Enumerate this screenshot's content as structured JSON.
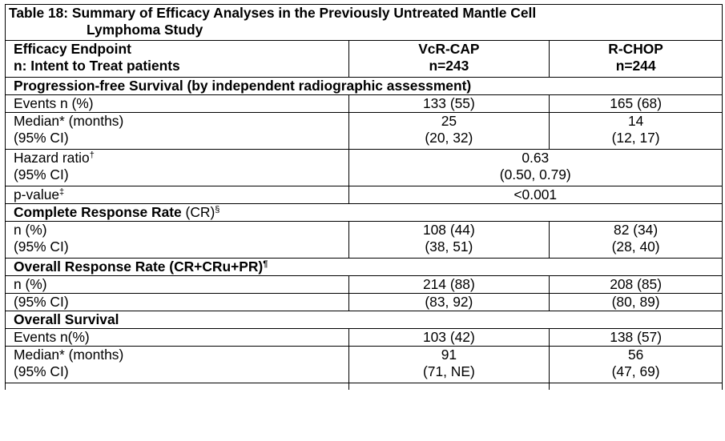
{
  "table": {
    "title_line1": "Table 18: Summary of Efficacy Analyses in the Previously Untreated Mantle Cell",
    "title_line2": "Lymphoma Study",
    "header": {
      "col1_line1": "Efficacy Endpoint",
      "col1_line2": "n: Intent to Treat patients",
      "col2_line1": "VcR-CAP",
      "col2_line2": "n=243",
      "col3_line1": "R-CHOP",
      "col3_line2": "n=244"
    },
    "pfs": {
      "section": "Progression-free Survival (by independent radiographic assessment)",
      "events_label": "Events n (%)",
      "events_vcr": "133 (55)",
      "events_rchop": "165 (68)",
      "median_label": "Median* (months)",
      "ci_label": "(95% CI)",
      "median_vcr": "25",
      "median_vcr_ci": "(20, 32)",
      "median_rchop": "14",
      "median_rchop_ci": "(12, 17)",
      "hr_label": "Hazard ratio",
      "hr_mark": "†",
      "hr_value": "0.63",
      "hr_ci": "(0.50, 0.79)",
      "pvalue_label": "p-value",
      "pvalue_mark": "‡",
      "pvalue": "<0.001"
    },
    "cr": {
      "section_bold": "Complete Response Rate",
      "section_normal": " (CR)",
      "section_mark": "§",
      "n_label": "n (%)",
      "ci_label": "(95% CI)",
      "vcr_n": "108 (44)",
      "vcr_ci": "(38, 51)",
      "rchop_n": "82 (34)",
      "rchop_ci": "(28, 40)"
    },
    "orr": {
      "section": "Overall Response Rate (CR+CRu+PR)",
      "section_mark": "¶",
      "n_label": "n (%)",
      "vcr_n": "214 (88)",
      "rchop_n": "208 (85)",
      "ci_label": "(95% CI)",
      "vcr_ci": "(83, 92)",
      "rchop_ci": "(80, 89)"
    },
    "os": {
      "section": "Overall Survival",
      "events_label": "Events n(%)",
      "events_vcr": "103 (42)",
      "events_rchop": "138 (57)",
      "median_label": "Median* (months)",
      "ci_label": "(95% CI)",
      "median_vcr": "91",
      "median_vcr_ci": "(71, NE)",
      "median_rchop": "56",
      "median_rchop_ci": "(47, 69)"
    }
  }
}
